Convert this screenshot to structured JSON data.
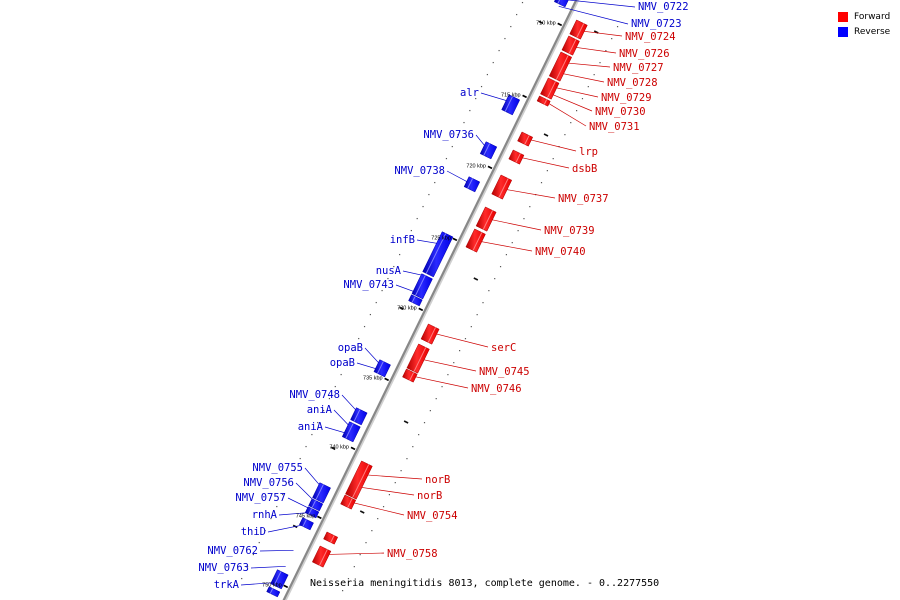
{
  "legend": [
    {
      "label": "Forward",
      "color": "#ff0000"
    },
    {
      "label": "Reverse",
      "color": "#0000ff"
    }
  ],
  "caption": "Neisseria meningitidis 8013, complete genome. - 0..2277550",
  "ticks": [
    "710 kbp",
    "715 kbp",
    "720 kbp",
    "725 kbp",
    "730 kbp",
    "735 kbp",
    "740 kbp",
    "745 kbp",
    "750 kbp"
  ],
  "reverse_genes": [
    "NMV_0722",
    "NMV_0723",
    "alr",
    "NMV_0736",
    "NMV_0738",
    "infB",
    "nusA",
    "NMV_0743",
    "opaB",
    "opaB",
    "NMV_0748",
    "aniA",
    "aniA",
    "NMV_0755",
    "NMV_0756",
    "NMV_0757",
    "rnhA",
    "thiD",
    "NMV_0762",
    "NMV_0763",
    "trkA"
  ],
  "forward_genes": [
    "NMV_0724",
    "NMV_0726",
    "NMV_0727",
    "NMV_0728",
    "NMV_0729",
    "NMV_0730",
    "NMV_0731",
    "lrp",
    "dsbB",
    "NMV_0737",
    "NMV_0739",
    "NMV_0740",
    "serC",
    "NMV_0745",
    "NMV_0746",
    "norB",
    "norB",
    "NMV_0754",
    "NMV_0758"
  ],
  "colors": {
    "forward": "#ff0000",
    "reverse": "#0000ff",
    "axis": "#888888"
  }
}
